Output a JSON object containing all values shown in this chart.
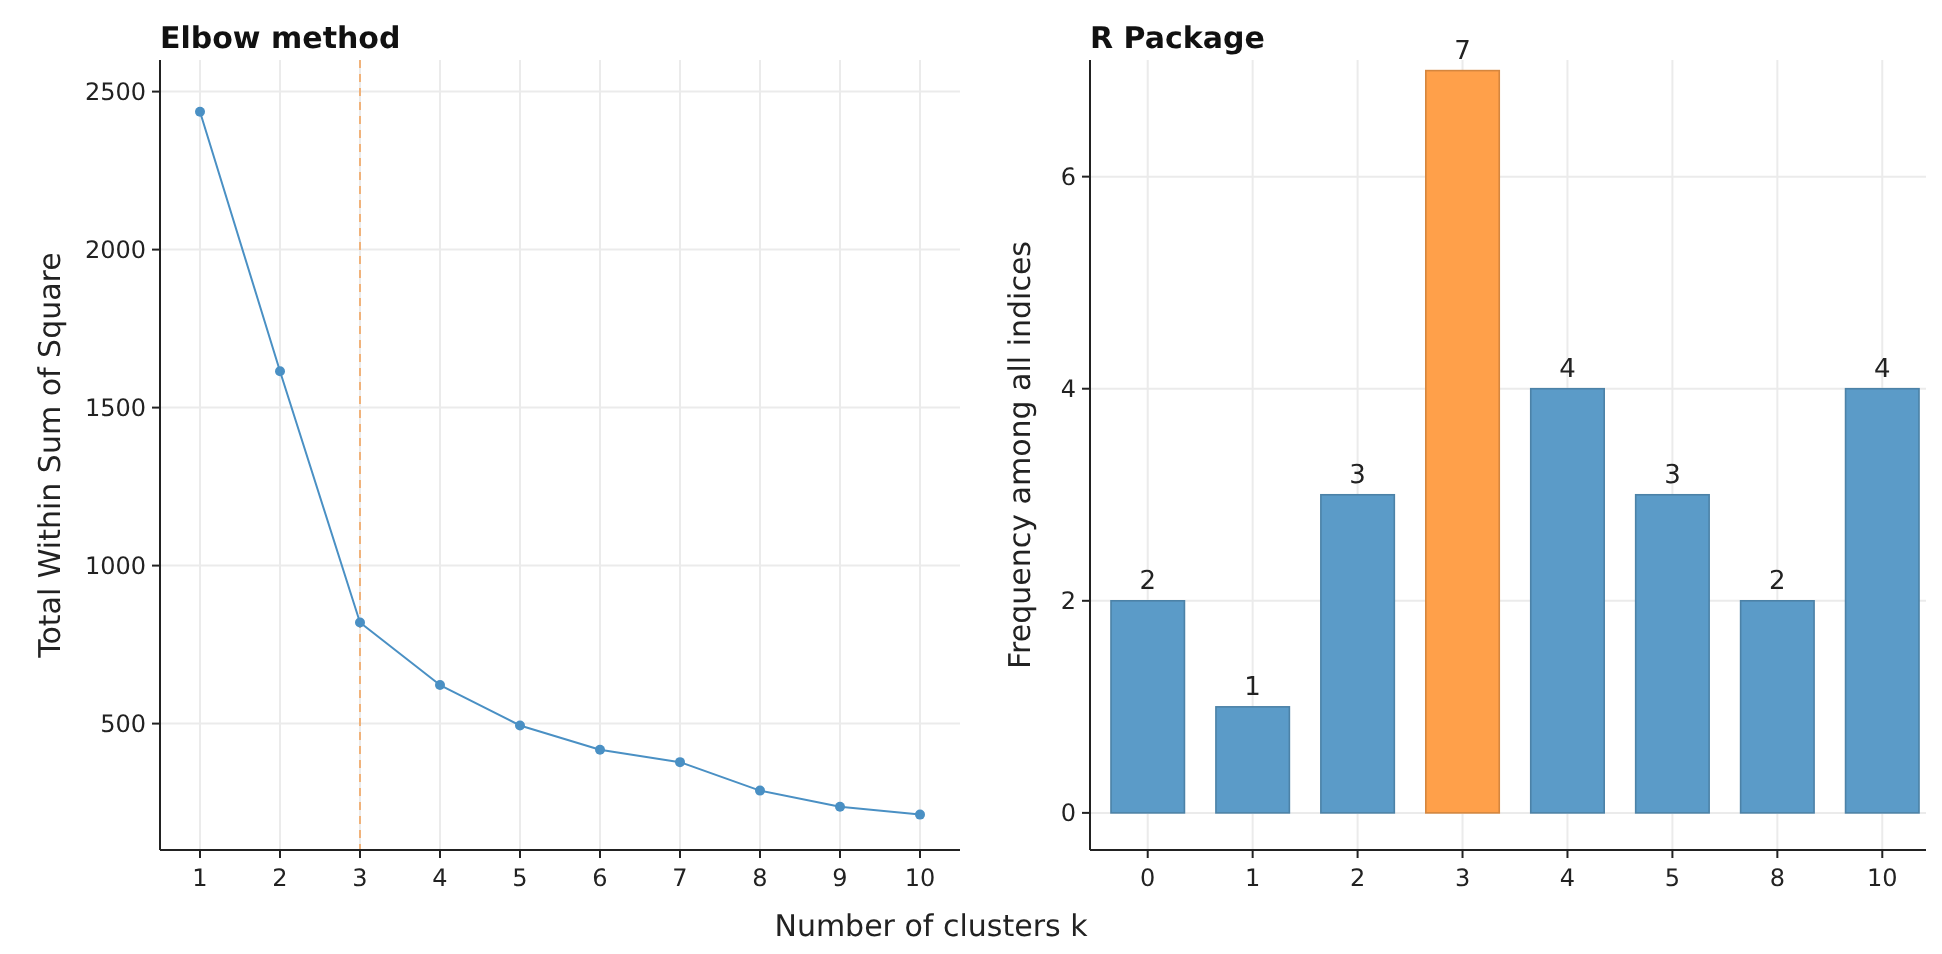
{
  "chart_data": [
    {
      "type": "line",
      "title": "Elbow method",
      "xlabel": "Number of clusters k",
      "ylabel": "Total Within Sum of Square",
      "x": [
        1,
        2,
        3,
        4,
        5,
        6,
        7,
        8,
        9,
        10
      ],
      "series": [
        {
          "color": "#4a90c4",
          "values": [
            2436,
            1615,
            820,
            622,
            494,
            417,
            378,
            288,
            237,
            212
          ]
        }
      ],
      "xlim": [
        0.5,
        10.5
      ],
      "xticks": [
        1,
        2,
        3,
        4,
        5,
        6,
        7,
        8,
        9,
        10
      ],
      "ylim": [
        100,
        2600
      ],
      "yticks": [
        500,
        1000,
        1500,
        2000,
        2500
      ],
      "grid": true,
      "marker": "circle",
      "line_style": "solid",
      "ref_lines": [
        {
          "axis": "x",
          "value": 3,
          "color": "#f0b27a",
          "line_style": "dashed"
        }
      ]
    },
    {
      "type": "bar",
      "title": "R Package",
      "ylabel": "Frequency among all indices",
      "categories": [
        "0",
        "1",
        "2",
        "3",
        "4",
        "5",
        "8",
        "10"
      ],
      "values": [
        2,
        1,
        3,
        7,
        4,
        3,
        2,
        4
      ],
      "colors": [
        "#5b9bc8",
        "#5b9bc8",
        "#5b9bc8",
        "#ffa04a",
        "#5b9bc8",
        "#5b9bc8",
        "#5b9bc8",
        "#5b9bc8"
      ],
      "ylim": [
        -0.35,
        7.1
      ],
      "yticks": [
        0,
        2,
        4,
        6
      ],
      "grid": true,
      "data_labels": true
    }
  ]
}
